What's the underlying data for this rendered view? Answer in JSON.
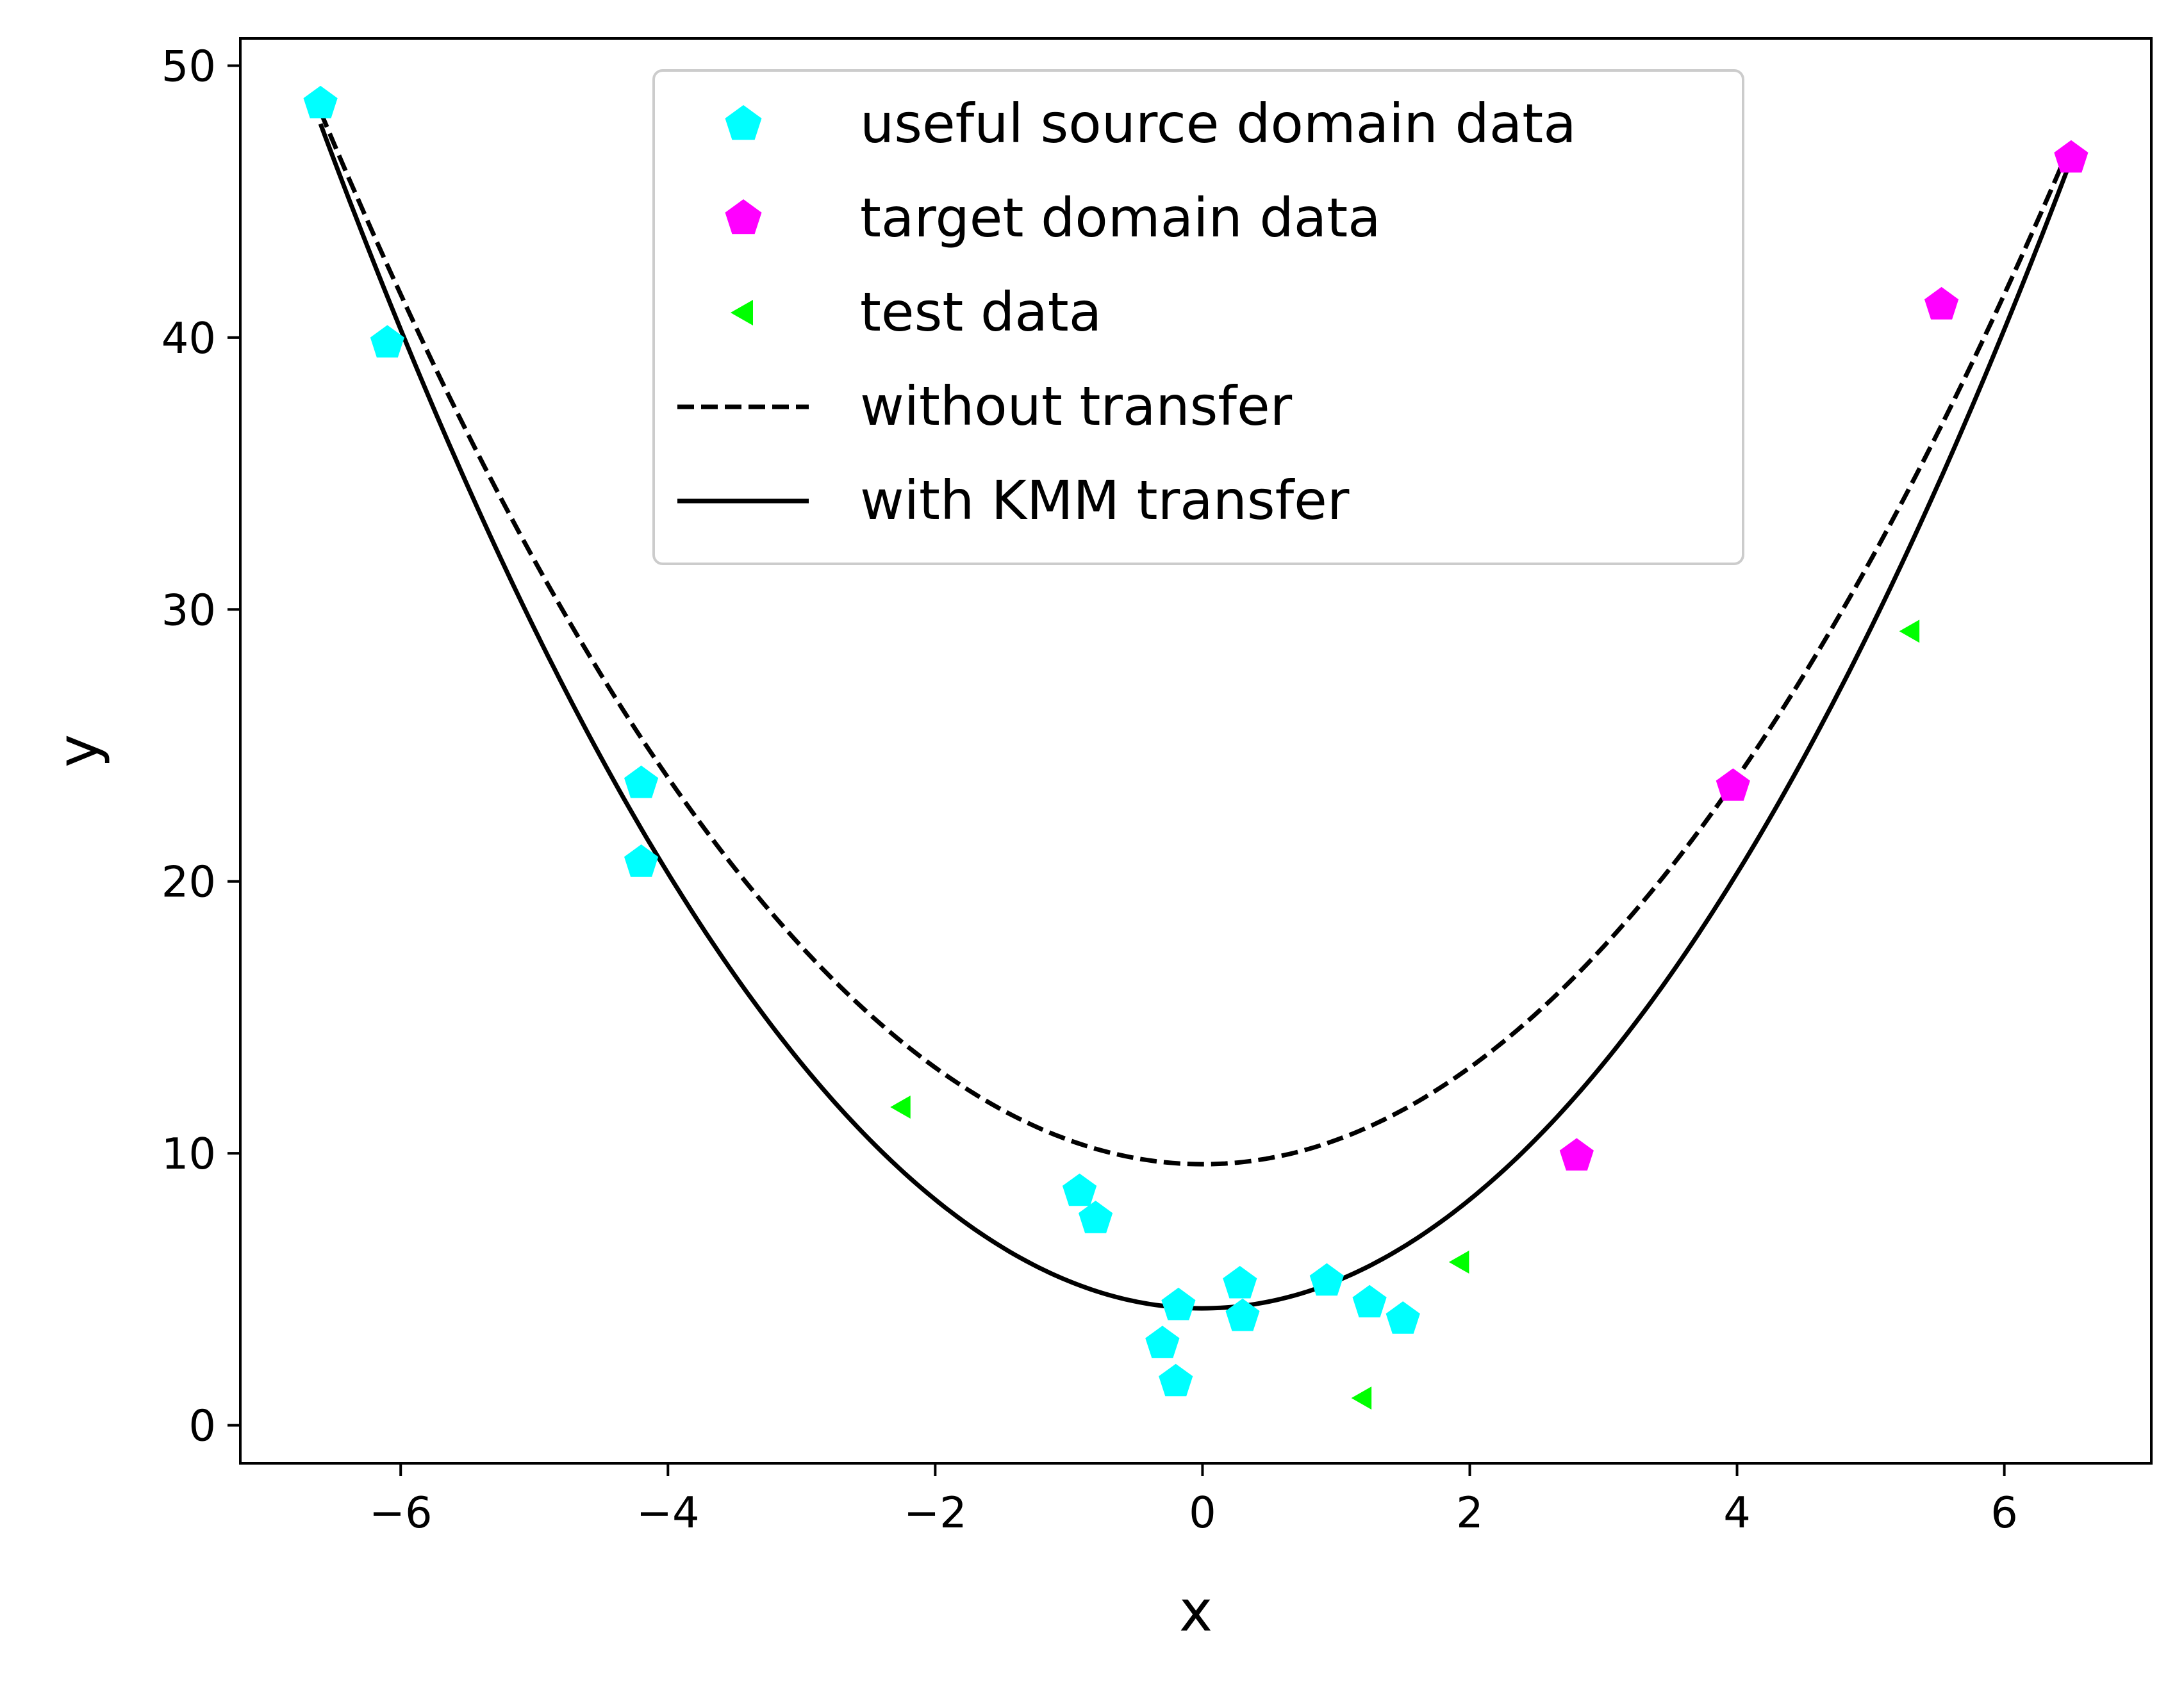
{
  "chart_data": {
    "type": "scatter",
    "xlabel": "x",
    "ylabel": "y",
    "xlim": [
      -7.2,
      7.1
    ],
    "ylim": [
      -1.4,
      51
    ],
    "xticks": [
      -6,
      -4,
      -2,
      0,
      2,
      4,
      6
    ],
    "yticks": [
      0,
      10,
      20,
      30,
      40,
      50
    ],
    "xtick_labels": [
      "−6",
      "−4",
      "−2",
      "0",
      "2",
      "4",
      "6"
    ],
    "ytick_labels": [
      "0",
      "10",
      "20",
      "30",
      "40",
      "50"
    ],
    "grid": false,
    "legend_position": "top-center",
    "series": [
      {
        "name": "useful source domain data",
        "kind": "scatter",
        "marker": "pentagon",
        "color": "#00ffff",
        "points": [
          [
            -6.6,
            48.6
          ],
          [
            -6.1,
            39.8
          ],
          [
            -4.2,
            23.6
          ],
          [
            -4.2,
            20.7
          ],
          [
            -0.92,
            8.6
          ],
          [
            -0.8,
            7.6
          ],
          [
            -0.3,
            3.0
          ],
          [
            -0.18,
            4.4
          ],
          [
            -0.2,
            1.6
          ],
          [
            0.28,
            5.2
          ],
          [
            0.3,
            4.0
          ],
          [
            0.93,
            5.3
          ],
          [
            1.25,
            4.5
          ],
          [
            1.5,
            3.9
          ]
        ]
      },
      {
        "name": "target domain data",
        "kind": "scatter",
        "marker": "pentagon",
        "color": "#ff00ff",
        "points": [
          [
            2.8,
            9.9
          ],
          [
            3.97,
            23.5
          ],
          [
            5.53,
            41.2
          ],
          [
            6.5,
            46.6
          ]
        ]
      },
      {
        "name": "test data",
        "kind": "scatter",
        "marker": "triangle-left",
        "color": "#00ff00",
        "points": [
          [
            -2.25,
            11.7
          ],
          [
            1.2,
            1.0
          ],
          [
            1.93,
            6.0
          ],
          [
            5.3,
            29.2
          ]
        ]
      },
      {
        "name": "without transfer",
        "kind": "line",
        "style": "dashed",
        "color": "#000000",
        "curve": {
          "a": 0.8886,
          "b": 0.0,
          "c": 9.6,
          "x_range": [
            -6.6,
            6.5
          ]
        }
      },
      {
        "name": "with KMM transfer",
        "kind": "line",
        "style": "solid",
        "color": "#000000",
        "curve": {
          "a": 1.0,
          "b": 0.0,
          "c": 4.3,
          "x_range": [
            -6.6,
            6.5
          ]
        }
      }
    ]
  }
}
